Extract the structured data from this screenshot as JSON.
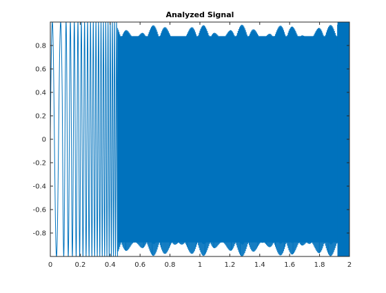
{
  "chart_data": {
    "type": "line",
    "title": "Analyzed Signal",
    "xlabel": "",
    "ylabel": "",
    "xlim": [
      0,
      2
    ],
    "ylim": [
      -1,
      1
    ],
    "x_ticks": [
      0,
      0.2,
      0.4,
      0.6,
      0.8,
      1,
      1.2,
      1.4,
      1.6,
      1.8,
      2
    ],
    "x_tick_labels": [
      "0",
      "0.2",
      "0.4",
      "0.6",
      "0.8",
      "1",
      "1.2",
      "1.4",
      "1.6",
      "1.8",
      "2"
    ],
    "y_ticks": [
      0.8,
      0.6,
      0.4,
      0.2,
      0,
      -0.2,
      -0.4,
      -0.6,
      -0.8
    ],
    "y_tick_labels": [
      "0.8",
      "0.6",
      "0.4",
      "0.2",
      "0",
      "-0.2",
      "-0.4",
      "-0.6",
      "-0.8"
    ],
    "grid": false,
    "legend": "none",
    "line_color": "#0072BD",
    "signal": {
      "description_of_shape": "dense oscillation, amplitude ~1, very high frequency; sparse distinct cycles near x=0-0.45, solid filled band from ~0.45 to 1.9 with envelope ~ +/-0.85, dense full band 1.92-2",
      "x_range": [
        0,
        2
      ],
      "amplitude": 1,
      "solid_band_start": 0.45,
      "solid_band_envelope": 0.88,
      "dense_end_start": 1.92
    }
  }
}
